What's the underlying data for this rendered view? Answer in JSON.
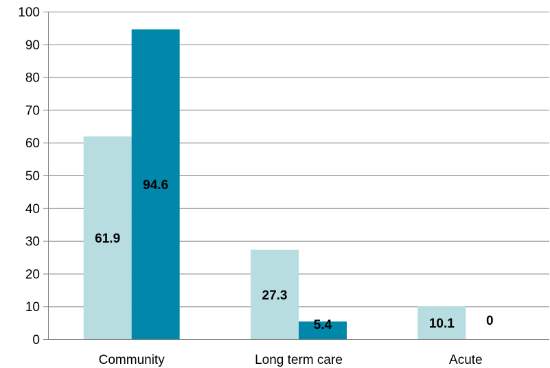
{
  "chart_data": {
    "type": "bar",
    "title": "",
    "xlabel": "",
    "ylabel": "",
    "categories": [
      "Community",
      "Long term care",
      "Acute"
    ],
    "series": [
      {
        "values": [
          61.9,
          27.3,
          10.1
        ],
        "color": "#b7dde1"
      },
      {
        "values": [
          94.6,
          5.4,
          0
        ],
        "color": "#0087aa"
      }
    ],
    "data_labels": [
      [
        "61.9",
        "27.3",
        "10.1"
      ],
      [
        "94.6",
        "5.4",
        "0"
      ]
    ],
    "y_ticks": [
      0,
      10,
      20,
      30,
      40,
      50,
      60,
      70,
      80,
      90,
      100
    ],
    "ylim": [
      0,
      100
    ],
    "grid": true,
    "legend": "none",
    "colors": {
      "gridline": "#808080",
      "axis": "#808080"
    }
  }
}
